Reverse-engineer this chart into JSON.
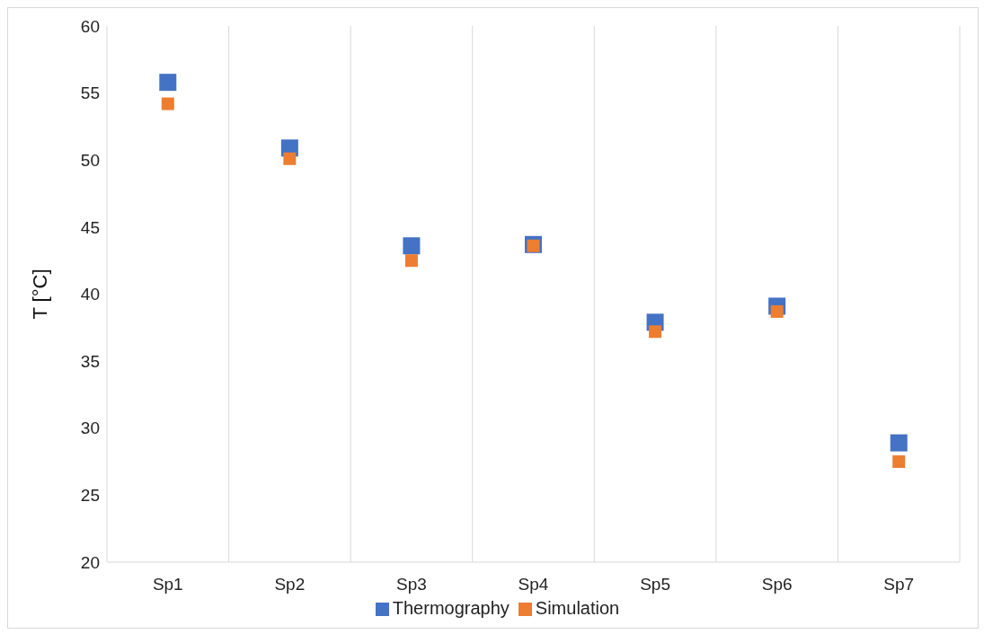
{
  "chart_data": {
    "type": "scatter",
    "ylabel": "T [°C]",
    "categories": [
      "Sp1",
      "Sp2",
      "Sp3",
      "Sp4",
      "Sp5",
      "Sp6",
      "Sp7"
    ],
    "series": [
      {
        "name": "Thermography",
        "color": "#4472c4",
        "values": [
          55.8,
          50.9,
          43.6,
          43.7,
          37.9,
          39.1,
          28.9
        ]
      },
      {
        "name": "Simulation",
        "color": "#ed7d31",
        "values": [
          54.2,
          50.1,
          42.5,
          43.6,
          37.2,
          38.7,
          27.5
        ]
      }
    ],
    "ylim": [
      20,
      60
    ],
    "yticks": [
      20,
      25,
      30,
      35,
      40,
      45,
      50,
      55,
      60
    ],
    "grid": "x",
    "legend": "bottom",
    "marker": "square"
  }
}
